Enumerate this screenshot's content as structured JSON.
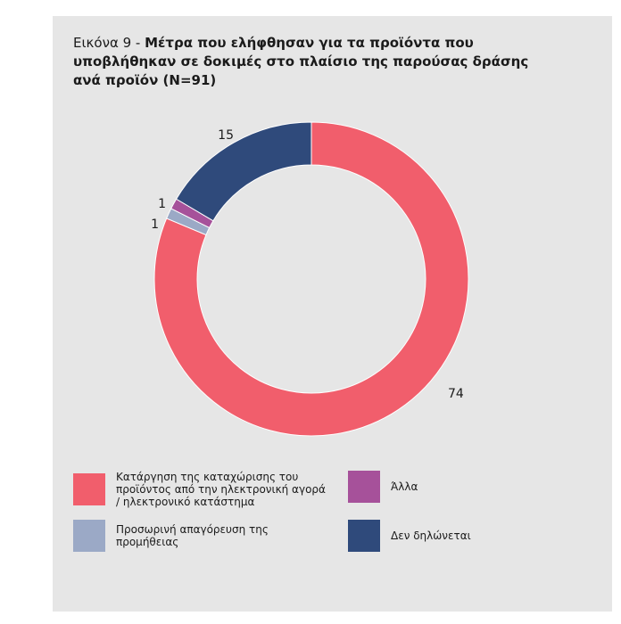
{
  "title": {
    "prefix": "Εικόνα 9 - ",
    "text": "Μέτρα που ελήφθησαν για τα προϊόντα που υποβλήθηκαν σε δοκιμές στο πλαίσιο της παρούσας δράσης ανά προϊόν (N=91)"
  },
  "chart_data": {
    "type": "pie",
    "donut": true,
    "total": 91,
    "slices": [
      {
        "name": "Κατάργηση της καταχώρισης του προϊόντος από την ηλεκτρονική αγορά / ηλεκτρονικό κατάστημα",
        "value": 74,
        "color": "#f15e6c"
      },
      {
        "name": "Προσωρινή απαγόρευση της προμήθειας",
        "value": 1,
        "color": "#9ba9c6"
      },
      {
        "name": "Άλλα",
        "value": 1,
        "color": "#a6519a"
      },
      {
        "name": "Δεν δηλώνεται",
        "value": 15,
        "color": "#2f4a7b"
      }
    ],
    "data_labels": [
      "74",
      "1",
      "1",
      "15"
    ],
    "legend_position": "bottom"
  },
  "legend": [
    {
      "label": "Κατάργηση της καταχώρισης του προϊόντος από την ηλεκτρονική αγορά / ηλεκτρονικό κατάστημα",
      "color": "#f15e6c"
    },
    {
      "label": "Άλλα",
      "color": "#a6519a"
    },
    {
      "label": "Προσωρινή απαγόρευση της προμήθειας",
      "color": "#9ba9c6"
    },
    {
      "label": "Δεν δηλώνεται",
      "color": "#2f4a7b"
    }
  ]
}
